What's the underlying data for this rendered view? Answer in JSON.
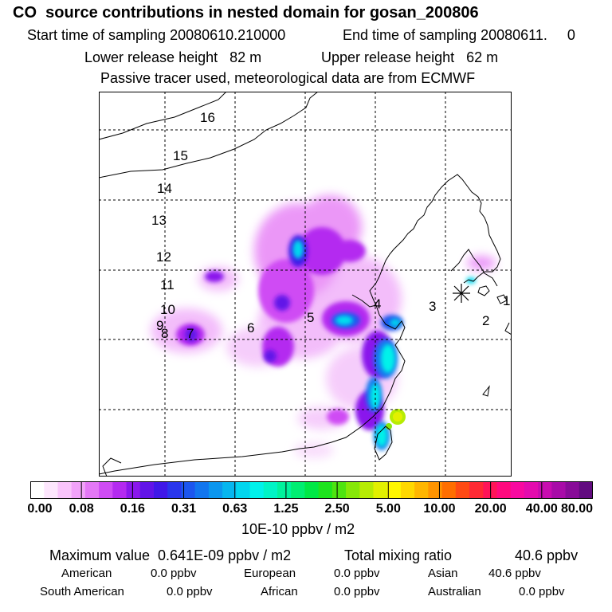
{
  "header": {
    "title": "CO  source contributions in nested domain for gosan_200806",
    "start_label": "Start time of sampling 20080610.210000",
    "end_label": "End time of sampling 20080611.     0",
    "lower_label": "Lower release height   82 m",
    "upper_label": "Upper release height   62 m",
    "tracer_label": "Passive tracer used, meteorological data are from ECMWF"
  },
  "map": {
    "region_labels": [
      "16",
      "15",
      "14",
      "13",
      "12",
      "11",
      "10",
      "9",
      "8",
      "7",
      "6",
      "5",
      "4",
      "3",
      "2",
      "1"
    ],
    "receptor_marker": "asterisk-marker"
  },
  "colorbar": {
    "tick_labels": [
      "0.00",
      "0.08",
      "0.16",
      "0.31",
      "0.63",
      "1.25",
      "2.50",
      "5.00",
      "10.00",
      "20.00",
      "40.00",
      "80.00"
    ],
    "colors": [
      "#ffffff",
      "#fde6fd",
      "#f9c4fb",
      "#f1a2f9",
      "#e478f6",
      "#cf4cf4",
      "#b42af0",
      "#8a17ec",
      "#6214e8",
      "#4018e8",
      "#2a36ec",
      "#1c56ee",
      "#1276ee",
      "#0c96ee",
      "#06b6ee",
      "#02d6ee",
      "#00f2ea",
      "#00f4c6",
      "#00f29c",
      "#00ee72",
      "#00e846",
      "#1ee41e",
      "#4ee410",
      "#86e808",
      "#b6ec04",
      "#e2f000",
      "#fff600",
      "#ffd800",
      "#ffb600",
      "#ff9400",
      "#ff6e00",
      "#ff4a14",
      "#ff2a34",
      "#ff1458",
      "#ff0a7e",
      "#f80aa0",
      "#e40cae",
      "#c80cb0",
      "#a80ca8",
      "#880c98",
      "#620c80"
    ],
    "units": "10E-10 ppbv / m2"
  },
  "summary": {
    "max_label": "Maximum value  0.641E-09 ppbv / m2",
    "total_label": "Total mixing ratio",
    "total_value": "40.6 ppbv",
    "regions": [
      {
        "name": "American",
        "value": "0.0 ppbv"
      },
      {
        "name": "European",
        "value": "0.0 ppbv"
      },
      {
        "name": "Asian",
        "value": "40.6 ppbv"
      },
      {
        "name": "South American",
        "value": "0.0 ppbv"
      },
      {
        "name": "African",
        "value": "0.0 ppbv"
      },
      {
        "name": "Australian",
        "value": "0.0 ppbv"
      }
    ]
  }
}
